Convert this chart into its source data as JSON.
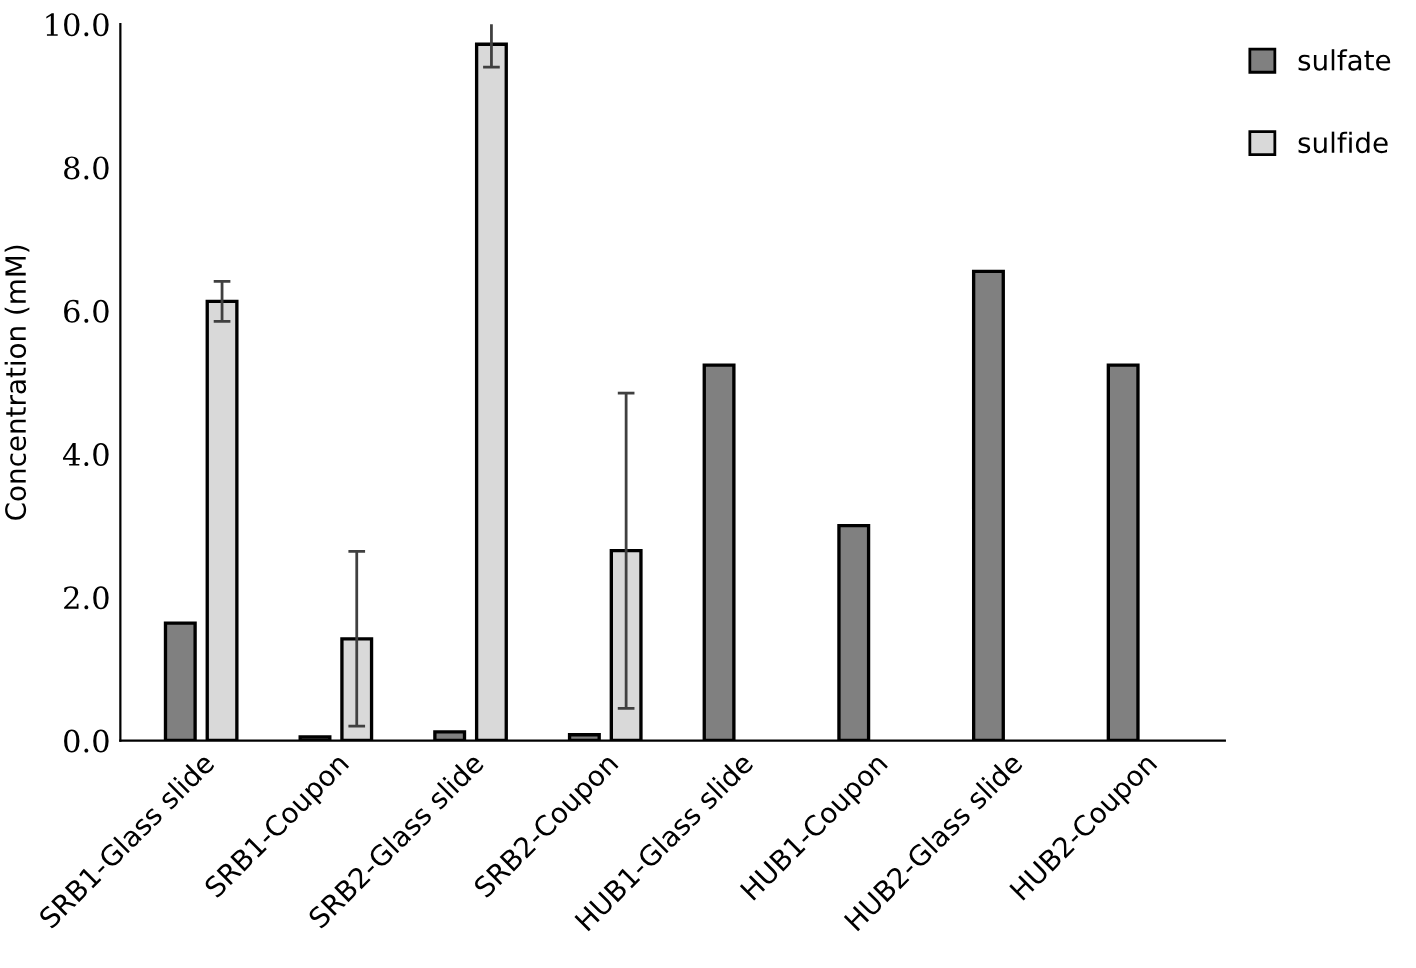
{
  "chart_data": {
    "type": "bar",
    "ylabel": "Concentration (mM)",
    "categories": [
      "SRB1-Glass slide",
      "SRB1-Coupon",
      "SRB2-Glass slide",
      "SRB2-Coupon",
      "HUB1-Glass slide",
      "HUB1-Coupon",
      "HUB2-Glass slide",
      "HUB2-Coupon"
    ],
    "series": [
      {
        "name": "sulfate",
        "color": "#808080",
        "values": [
          1.64,
          0.05,
          0.12,
          0.08,
          5.24,
          3.0,
          6.55,
          5.24
        ]
      },
      {
        "name": "sulfide",
        "color": "#d9d9d9",
        "values": [
          6.13,
          1.42,
          9.72,
          2.65,
          null,
          null,
          null,
          null
        ],
        "errors": [
          0.28,
          1.22,
          0.32,
          2.2,
          null,
          null,
          null,
          null
        ]
      }
    ],
    "ylim": [
      0,
      10
    ],
    "yticks": [
      {
        "value": 0,
        "label": "0.0"
      },
      {
        "value": 2,
        "label": "2.0"
      },
      {
        "value": 4,
        "label": "4.0"
      },
      {
        "value": 6,
        "label": "6.0"
      },
      {
        "value": 8,
        "label": "8.0"
      },
      {
        "value": 10,
        "label": "10.0"
      }
    ],
    "grid": false,
    "legend": "top right"
  }
}
